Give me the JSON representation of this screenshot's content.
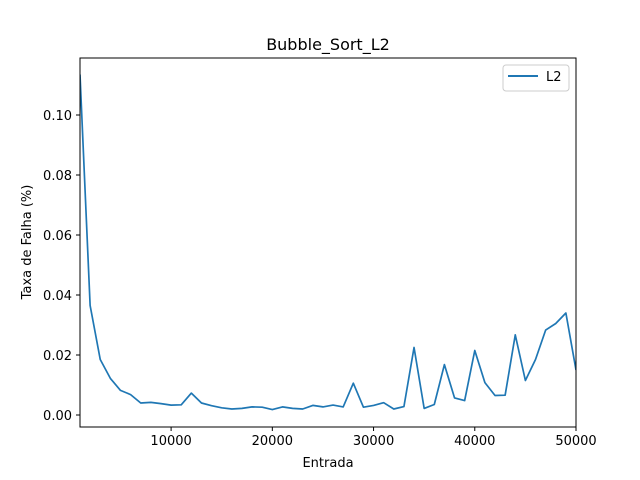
{
  "chart_data": {
    "type": "line",
    "title": "Bubble_Sort_L2",
    "xlabel": "Entrada",
    "ylabel": "Taxa de Falha (%)",
    "xlim": [
      1000,
      50000
    ],
    "ylim": [
      -0.004,
      0.119
    ],
    "x_ticks": [
      10000,
      20000,
      30000,
      40000,
      50000
    ],
    "x_tick_labels": [
      "10000",
      "20000",
      "30000",
      "40000",
      "50000"
    ],
    "y_ticks": [
      0.0,
      0.02,
      0.04,
      0.06,
      0.08,
      0.1
    ],
    "y_tick_labels": [
      "0.00",
      "0.02",
      "0.04",
      "0.06",
      "0.08",
      "0.10"
    ],
    "grid": false,
    "legend_position": "top-right",
    "series": [
      {
        "name": "L2",
        "color": "#1f77b4",
        "x": [
          1000,
          2000,
          3000,
          4000,
          5000,
          6000,
          7000,
          8000,
          9000,
          10000,
          11000,
          12000,
          13000,
          14000,
          15000,
          16000,
          17000,
          18000,
          19000,
          20000,
          21000,
          22000,
          23000,
          24000,
          25000,
          26000,
          27000,
          28000,
          29000,
          30000,
          31000,
          32000,
          33000,
          34000,
          35000,
          36000,
          37000,
          38000,
          39000,
          40000,
          41000,
          42000,
          43000,
          44000,
          45000,
          46000,
          47000,
          48000,
          49000,
          50000
        ],
        "y": [
          0.1135,
          0.0365,
          0.0185,
          0.0122,
          0.0082,
          0.0068,
          0.004,
          0.0042,
          0.0038,
          0.0033,
          0.0034,
          0.0073,
          0.004,
          0.0031,
          0.0024,
          0.002,
          0.0022,
          0.0027,
          0.0026,
          0.0018,
          0.0027,
          0.0022,
          0.002,
          0.0032,
          0.0027,
          0.0033,
          0.0027,
          0.0106,
          0.0026,
          0.0032,
          0.0041,
          0.002,
          0.0028,
          0.0225,
          0.0022,
          0.0035,
          0.0168,
          0.0057,
          0.0048,
          0.0215,
          0.0108,
          0.0065,
          0.0066,
          0.0267,
          0.0115,
          0.0185,
          0.0283,
          0.0305,
          0.034,
          0.015
        ]
      }
    ]
  }
}
